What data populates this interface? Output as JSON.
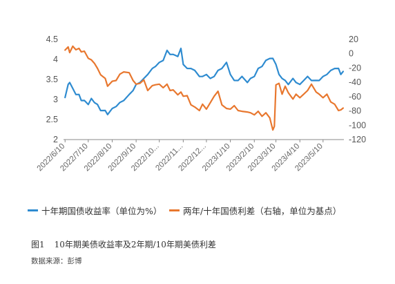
{
  "chart_data": {
    "type": "line",
    "dual_axis": true,
    "left_axis": {
      "ylim": [
        2,
        4.5
      ],
      "ticks": [
        "4.5",
        "4",
        "3.5",
        "3",
        "2.5",
        "2"
      ]
    },
    "right_axis": {
      "ylim": [
        -120,
        20
      ],
      "ticks": [
        "20",
        "0",
        "-20",
        "-40",
        "-60",
        "-80",
        "-100",
        "-120"
      ]
    },
    "x_ticks": [
      "2022/6/10",
      "2022/7/10",
      "2022/8/10",
      "2022/9/10",
      "2022/10...",
      "2022/11...",
      "2022/12...",
      "2023/1/10",
      "2023/2/10",
      "2023/3/10",
      "2023/4/10",
      "2023/5/10"
    ],
    "grid": false,
    "legend_position": "bottom",
    "series": [
      {
        "name": "十年期国债收益率（单位为%）",
        "axis": "left",
        "color": "#2E8BD0",
        "x": [
          "2022/6/10",
          "2022/6/14",
          "2022/6/16",
          "2022/6/20",
          "2022/6/24",
          "2022/6/28",
          "2022/7/1",
          "2022/7/5",
          "2022/7/10",
          "2022/7/14",
          "2022/7/18",
          "2022/7/22",
          "2022/7/26",
          "2022/8/1",
          "2022/8/4",
          "2022/8/10",
          "2022/8/15",
          "2022/8/20",
          "2022/8/25",
          "2022/9/1",
          "2022/9/6",
          "2022/9/10",
          "2022/9/15",
          "2022/9/20",
          "2022/9/25",
          "2022/10/1",
          "2022/10/5",
          "2022/10/10",
          "2022/10/15",
          "2022/10/20",
          "2022/10/24",
          "2022/10/28",
          "2022/11/3",
          "2022/11/7",
          "2022/11/10",
          "2022/11/15",
          "2022/11/20",
          "2022/11/25",
          "2022/12/1",
          "2022/12/5",
          "2022/12/10",
          "2022/12/15",
          "2022/12/20",
          "2022/12/25",
          "2022/12/30",
          "2023/1/5",
          "2023/1/10",
          "2023/1/15",
          "2023/1/20",
          "2023/1/25",
          "2023/2/1",
          "2023/2/5",
          "2023/2/10",
          "2023/2/15",
          "2023/2/20",
          "2023/2/25",
          "2023/3/2",
          "2023/3/6",
          "2023/3/10",
          "2023/3/14",
          "2023/3/18",
          "2023/3/22",
          "2023/3/26",
          "2023/4/1",
          "2023/4/5",
          "2023/4/10",
          "2023/4/15",
          "2023/4/20",
          "2023/4/25",
          "2023/5/1",
          "2023/5/5",
          "2023/5/10",
          "2023/5/15",
          "2023/5/20",
          "2023/5/25",
          "2023/5/30",
          "2023/6/2",
          "2023/6/5"
        ],
        "values": [
          3.05,
          3.35,
          3.45,
          3.25,
          3.15,
          3.1,
          3.0,
          2.95,
          2.9,
          3.0,
          2.95,
          2.85,
          2.75,
          2.7,
          2.65,
          2.75,
          2.85,
          2.9,
          3.0,
          3.1,
          3.25,
          3.35,
          3.45,
          3.5,
          3.65,
          3.75,
          3.85,
          3.9,
          4.0,
          4.2,
          4.15,
          4.1,
          4.1,
          4.25,
          3.9,
          3.75,
          3.8,
          3.7,
          3.6,
          3.55,
          3.65,
          3.5,
          3.6,
          3.7,
          3.8,
          3.9,
          3.65,
          3.45,
          3.5,
          3.55,
          3.45,
          3.5,
          3.6,
          3.75,
          3.85,
          3.95,
          4.05,
          4.0,
          3.9,
          3.6,
          3.55,
          3.45,
          3.4,
          3.5,
          3.45,
          3.35,
          3.5,
          3.55,
          3.5,
          3.45,
          3.5,
          3.55,
          3.65,
          3.7,
          3.8,
          3.75,
          3.65,
          3.7
        ]
      },
      {
        "name": "两年/十年国债利差（右轴，单位为基点）",
        "axis": "right",
        "color": "#E8772E",
        "x": [
          "2022/6/10",
          "2022/6/14",
          "2022/6/16",
          "2022/6/20",
          "2022/6/24",
          "2022/6/28",
          "2022/7/1",
          "2022/7/5",
          "2022/7/10",
          "2022/7/14",
          "2022/7/18",
          "2022/7/22",
          "2022/7/26",
          "2022/8/1",
          "2022/8/4",
          "2022/8/10",
          "2022/8/15",
          "2022/8/20",
          "2022/8/25",
          "2022/9/1",
          "2022/9/6",
          "2022/9/10",
          "2022/9/15",
          "2022/9/20",
          "2022/9/25",
          "2022/10/1",
          "2022/10/5",
          "2022/10/10",
          "2022/10/15",
          "2022/10/20",
          "2022/10/24",
          "2022/10/28",
          "2022/11/3",
          "2022/11/7",
          "2022/11/10",
          "2022/11/15",
          "2022/11/20",
          "2022/11/25",
          "2022/12/1",
          "2022/12/5",
          "2022/12/10",
          "2022/12/15",
          "2022/12/20",
          "2022/12/25",
          "2022/12/30",
          "2023/1/5",
          "2023/1/10",
          "2023/1/15",
          "2023/1/20",
          "2023/1/25",
          "2023/2/1",
          "2023/2/5",
          "2023/2/10",
          "2023/2/15",
          "2023/2/20",
          "2023/2/25",
          "2023/3/2",
          "2023/3/6",
          "2023/3/8",
          "2023/3/10",
          "2023/3/14",
          "2023/3/18",
          "2023/3/22",
          "2023/3/26",
          "2023/4/1",
          "2023/4/5",
          "2023/4/10",
          "2023/4/15",
          "2023/4/20",
          "2023/4/25",
          "2023/5/1",
          "2023/5/5",
          "2023/5/10",
          "2023/5/15",
          "2023/5/20",
          "2023/5/25",
          "2023/5/30",
          "2023/6/2",
          "2023/6/5"
        ],
        "values": [
          5,
          8,
          3,
          9,
          7,
          6,
          4,
          2,
          -5,
          -10,
          -12,
          -22,
          -28,
          -36,
          -44,
          -40,
          -36,
          -30,
          -24,
          -28,
          -36,
          -44,
          -40,
          -38,
          -50,
          -46,
          -42,
          -44,
          -46,
          -44,
          -50,
          -52,
          -56,
          -55,
          -58,
          -60,
          -70,
          -76,
          -78,
          -72,
          -76,
          -70,
          -58,
          -54,
          -70,
          -78,
          -76,
          -74,
          -78,
          -82,
          -80,
          -84,
          -84,
          -82,
          -86,
          -84,
          -88,
          -108,
          -100,
          -45,
          -40,
          -58,
          -44,
          -56,
          -62,
          -58,
          -60,
          -58,
          -50,
          -44,
          -52,
          -58,
          -60,
          -58,
          -66,
          -72,
          -78,
          -80,
          -76
        ]
      }
    ]
  },
  "legend": [
    {
      "label": "十年期国债收益率（单位为%）",
      "color": "#2E8BD0"
    },
    {
      "label": "两年/十年国债利差（右轴，单位为基点）",
      "color": "#E8772E"
    }
  ],
  "caption": {
    "figure": "图1",
    "text": "10年期美债收益率及2年期/10年期美债利差"
  },
  "source": "数据来源：彭博"
}
